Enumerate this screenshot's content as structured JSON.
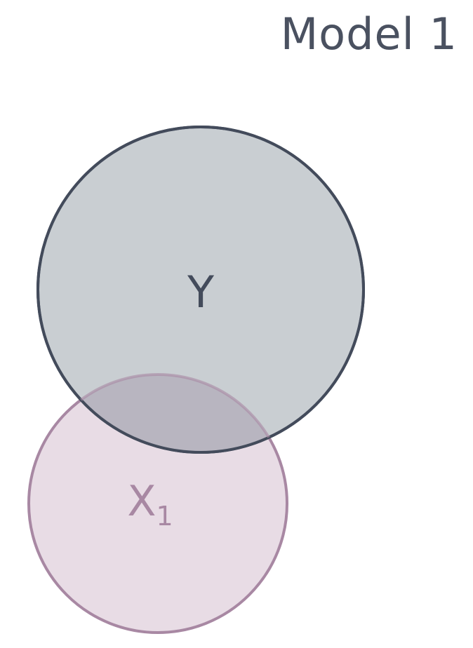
{
  "title": "Model 1",
  "sets": [
    {
      "id": "y",
      "label": "Y",
      "subscript": "",
      "fill": "#c9ced2",
      "stroke": "#434b5b",
      "text_color": "#434b5b"
    },
    {
      "id": "x1",
      "label": "X",
      "subscript": "1",
      "fill": "#e8dce5",
      "stroke": "#a888a3",
      "text_color": "#a888a3"
    }
  ],
  "overlap": {
    "fill": "#b8b5c0"
  }
}
